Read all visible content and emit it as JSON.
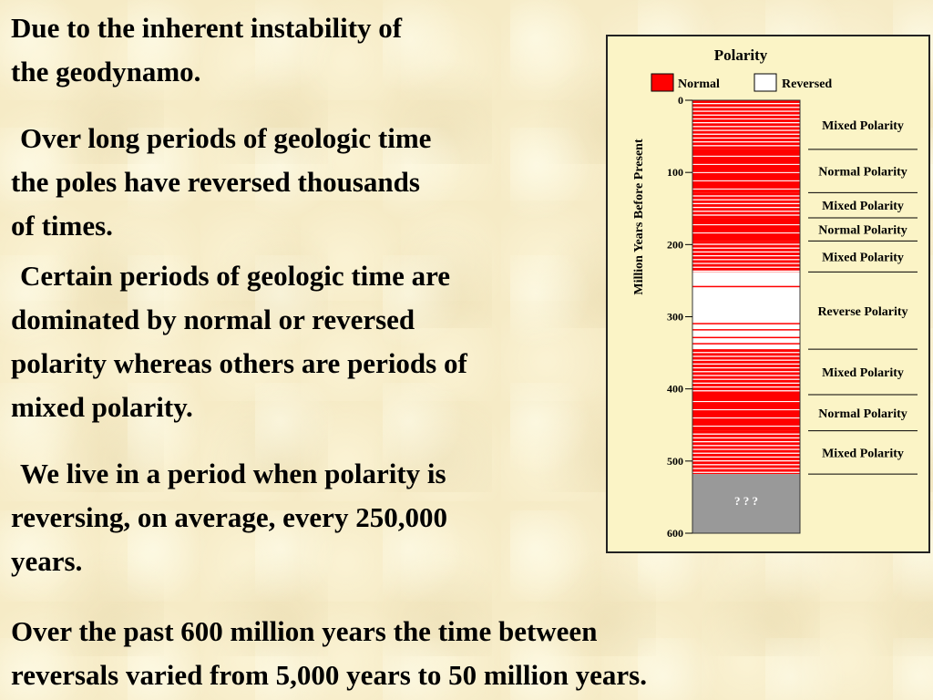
{
  "text": {
    "p1_line1": "Due to the inherent instability of",
    "p1_line2": "the geodynamo.",
    "p2_line1": "Over long periods of geologic time",
    "p2_line2": "the poles have reversed thousands",
    "p2_line3": "of times.",
    "p3_line1": "Certain periods of geologic time are",
    "p3_line2": "dominated by normal or reversed",
    "p3_line3": "polarity whereas others are periods of",
    "p3_line4": "mixed polarity.",
    "p4_line1": "We live in a period when polarity is",
    "p4_line2": "reversing, on average, every 250,000",
    "p4_line3": "years.",
    "p5_line1": "Over the past 600 million years the time between",
    "p5_line2": "reversals varied from 5,000 years to 50 million years."
  },
  "chart": {
    "title": "Polarity",
    "legend_normal": "Normal",
    "legend_reversed": "Reversed",
    "ylabel": "Million Years Before Present",
    "unknown_label": "? ? ?",
    "ticks": [
      "0",
      "100",
      "200",
      "300",
      "400",
      "500",
      "600"
    ],
    "periods": [
      "Mixed Polarity",
      "Normal Polarity",
      "Mixed Polarity",
      "Normal Polarity",
      "Mixed Polarity",
      "Reverse Polarity",
      "Mixed Polarity",
      "Normal Polarity",
      "Mixed Polarity"
    ]
  },
  "chart_data": {
    "type": "table",
    "title": "Polarity",
    "ylabel": "Million Years Before Present",
    "ylim": [
      0,
      600
    ],
    "legend": [
      "Normal",
      "Reversed"
    ],
    "colors": {
      "normal": "#ff0000",
      "reversed": "#ffffff",
      "unknown": "#999999"
    },
    "segments": [
      {
        "label": "Mixed Polarity",
        "start": 0,
        "end": 68,
        "kind": "mixed"
      },
      {
        "label": "Normal Polarity",
        "start": 68,
        "end": 128,
        "kind": "normal"
      },
      {
        "label": "Mixed Polarity",
        "start": 128,
        "end": 163,
        "kind": "mixed"
      },
      {
        "label": "Normal Polarity",
        "start": 163,
        "end": 195,
        "kind": "normal"
      },
      {
        "label": "Mixed Polarity",
        "start": 195,
        "end": 238,
        "kind": "mixed"
      },
      {
        "label": "Reverse Polarity",
        "start": 238,
        "end": 345,
        "kind": "reversed"
      },
      {
        "label": "Mixed Polarity",
        "start": 345,
        "end": 408,
        "kind": "mixed"
      },
      {
        "label": "Normal Polarity",
        "start": 408,
        "end": 458,
        "kind": "normal"
      },
      {
        "label": "Mixed Polarity",
        "start": 458,
        "end": 518,
        "kind": "mixed"
      },
      {
        "label": "? ? ?",
        "start": 518,
        "end": 600,
        "kind": "unknown"
      }
    ]
  }
}
